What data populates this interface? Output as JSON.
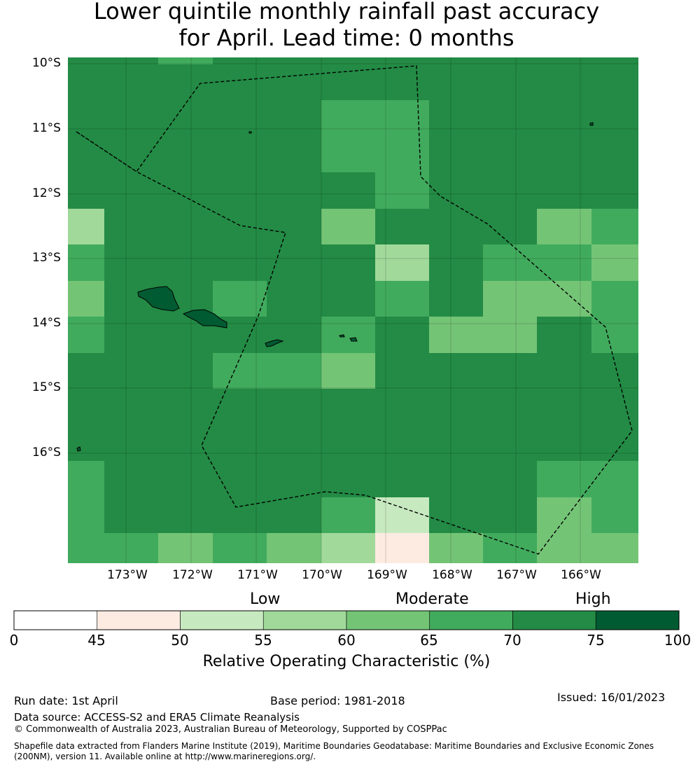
{
  "title": {
    "line1": "Lower quintile monthly rainfall past accuracy",
    "line2": "for April. Lead time: 0 months"
  },
  "map": {
    "lat_labels": [
      "10°S",
      "11°S",
      "12°S",
      "13°S",
      "14°S",
      "15°S",
      "16°S"
    ],
    "lon_labels": [
      "173°W",
      "172°W",
      "171°W",
      "170°W",
      "169°W",
      "168°W",
      "167°W",
      "166°W"
    ],
    "grid_rows": [
      [
        6,
        6,
        5,
        6,
        6,
        6,
        6,
        6,
        6,
        6,
        6
      ],
      [
        6,
        6,
        6,
        6,
        6,
        6,
        6,
        6,
        6,
        6,
        6
      ],
      [
        6,
        6,
        6,
        6,
        6,
        5,
        5,
        6,
        6,
        6,
        6
      ],
      [
        6,
        6,
        6,
        6,
        6,
        5,
        5,
        6,
        6,
        6,
        6
      ],
      [
        6,
        6,
        6,
        6,
        6,
        6,
        5,
        6,
        6,
        6,
        6
      ],
      [
        3,
        6,
        6,
        6,
        6,
        4,
        6,
        6,
        6,
        4,
        5
      ],
      [
        5,
        6,
        6,
        6,
        6,
        6,
        3,
        6,
        5,
        5,
        4
      ],
      [
        4,
        6,
        6,
        5,
        6,
        6,
        5,
        6,
        4,
        4,
        5
      ],
      [
        5,
        6,
        6,
        6,
        6,
        5,
        6,
        4,
        4,
        6,
        5
      ],
      [
        6,
        6,
        6,
        5,
        5,
        4,
        6,
        6,
        6,
        6,
        6
      ],
      [
        6,
        6,
        6,
        6,
        6,
        6,
        6,
        6,
        6,
        6,
        6
      ],
      [
        6,
        6,
        6,
        6,
        6,
        6,
        6,
        6,
        6,
        6,
        6
      ],
      [
        5,
        6,
        6,
        6,
        6,
        6,
        6,
        6,
        6,
        5,
        5
      ],
      [
        5,
        6,
        6,
        6,
        6,
        5,
        2,
        6,
        6,
        4,
        5
      ],
      [
        5,
        5,
        4,
        5,
        4,
        3,
        1,
        4,
        5,
        4,
        4
      ]
    ]
  },
  "colorbar": {
    "category_labels": [
      "Low",
      "Moderate",
      "High"
    ],
    "ticks": [
      "0",
      "45",
      "50",
      "55",
      "60",
      "65",
      "70",
      "75",
      "100"
    ],
    "colors": [
      "#ffffff",
      "#fdebe1",
      "#c7e9c0",
      "#a1d99b",
      "#74c476",
      "#41ab5d",
      "#238b45",
      "#005a32"
    ],
    "label": "Relative Operating Characteristic (%)"
  },
  "footer": {
    "run_date": "Run date: 1st April",
    "base_period": "Base period: 1981-2018",
    "issued": "Issued: 16/01/2023",
    "data_source": "Data source: ACCESS-S2 and ERA5 Climate Reanalysis",
    "copyright": "© Commonwealth of Australia 2023, Australian Bureau of Meteorology, Supported by COSPPac",
    "shapefile": "Shapefile data extracted from Flanders Marine Institute (2019), Maritime Boundaries Geodatabase: Maritime Boundaries and Exclusive Economic Zones",
    "shapefile2": "(200NM), version 11. Available online at http://www.marineregions.org/."
  }
}
